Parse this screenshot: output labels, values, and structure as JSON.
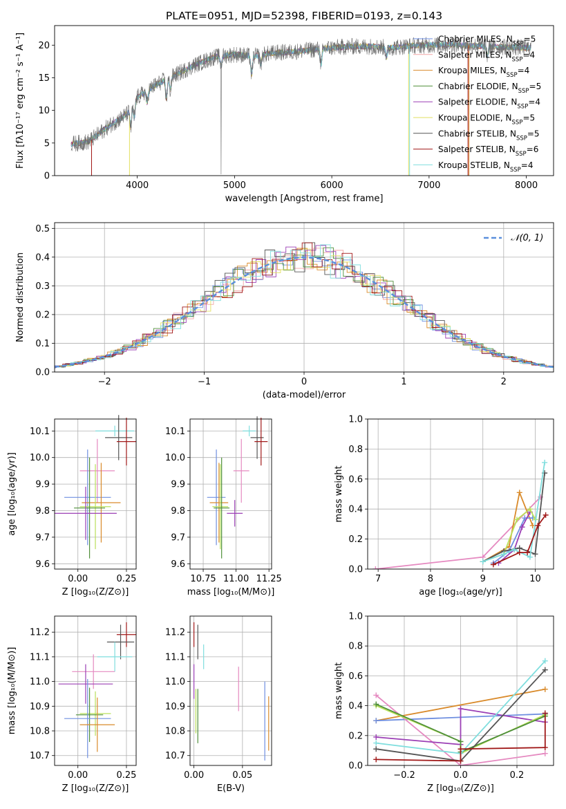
{
  "colors": {
    "chabrier_miles": "#6f8fe0",
    "salpeter_miles": "#f2a6a6",
    "kroupa_miles": "#d98a2a",
    "chabrier_elodie": "#4f8f3a",
    "salpeter_elodie": "#9b3fb5",
    "kroupa_elodie": "#e2df60",
    "chabrier_stelib": "#555555",
    "salpeter_stelib": "#a01818",
    "kroupa_stelib": "#7fdede",
    "normal_curve": "#5a8fdc",
    "pink": "#e589c0",
    "lime": "#b9e05a"
  },
  "chart_data": [
    {
      "id": "spectrum",
      "type": "line",
      "title": "PLATE=0951, MJD=52398, FIBERID=0193, z=0.143",
      "xlabel": "wavelength [Angstrom, rest frame]",
      "ylabel": "Flux [fλ10⁻¹⁷ erg cm⁻² s⁻¹ A⁻¹]",
      "xlim": [
        3150,
        8280
      ],
      "ylim": [
        0,
        23
      ],
      "xticks": [
        "4000",
        "5000",
        "6000",
        "7000",
        "8000"
      ],
      "yticks": [
        "0",
        "5",
        "10",
        "15",
        "20"
      ],
      "legend_position": "top-right",
      "legend": [
        "Chabrier MILES, N_SSP=5",
        "Salpeter MILES, N_SSP=4",
        "Kroupa MILES, N_SSP=4",
        "Chabrier ELODIE, N_SSP=5",
        "Salpeter ELODIE, N_SSP=4",
        "Kroupa ELODIE, N_SSP=5",
        "Chabrier STELIB, N_SSP=5",
        "Salpeter STELIB, N_SSP=6",
        "Kroupa STELIB, N_SSP=4"
      ],
      "continuum": {
        "x": [
          3300,
          3500,
          3700,
          3900,
          4000,
          4200,
          4400,
          4600,
          4800,
          5000,
          5200,
          5400,
          5600,
          5800,
          6000,
          6200,
          6400,
          6600,
          6800,
          7000,
          7200,
          7400,
          7600,
          7800,
          8000
        ],
        "y": [
          4.8,
          5.2,
          7.5,
          9.5,
          12.0,
          14.0,
          15.5,
          17.0,
          18.2,
          18.6,
          18.3,
          18.8,
          19.0,
          19.3,
          19.6,
          19.8,
          19.8,
          19.6,
          19.9,
          20.0,
          20.1,
          20.0,
          19.8,
          19.7,
          19.6
        ]
      }
    },
    {
      "id": "residuals",
      "type": "histogram",
      "xlabel": "(data-model)/error",
      "ylabel": "Normed distribution",
      "xlim": [
        -2.5,
        2.5
      ],
      "ylim": [
        0,
        0.52
      ],
      "xticks": [
        "−2",
        "−1",
        "0",
        "1",
        "2"
      ],
      "yticks": [
        "0.0",
        "0.1",
        "0.2",
        "0.3",
        "0.4",
        "0.5"
      ],
      "legend": "𝒩(0, 1)",
      "legend_position": "top-right",
      "bin_width": 0.1
    },
    {
      "id": "age_vs_Z",
      "type": "errorbar",
      "xlabel": "Z [log₁₀(Z/Z⊙)]",
      "ylabel": "age  [log₁₀(age/yr)]",
      "xlim": [
        -0.12,
        0.3
      ],
      "ylim": [
        9.58,
        10.145
      ],
      "xticks": [
        "0.00",
        "0.25"
      ],
      "yticks": [
        "9.6",
        "9.7",
        "9.8",
        "9.9",
        "10.0",
        "10.1"
      ],
      "points": [
        {
          "x": 0.19,
          "y": 10.1,
          "xerr": 0.1,
          "yerr": 0.02,
          "color": "kroupa_stelib"
        },
        {
          "x": 0.21,
          "y": 10.075,
          "xerr": 0.07,
          "yerr": 0.085,
          "color": "chabrier_stelib"
        },
        {
          "x": 0.25,
          "y": 10.06,
          "xerr": 0.05,
          "yerr": 0.09,
          "color": "salpeter_stelib"
        },
        {
          "x": 0.1,
          "y": 9.95,
          "xerr": 0.09,
          "yerr": 0.12,
          "color": "pink"
        },
        {
          "x": 0.05,
          "y": 9.85,
          "xerr": 0.12,
          "yerr": 0.18,
          "color": "chabrier_miles"
        },
        {
          "x": 0.12,
          "y": 9.83,
          "xerr": 0.1,
          "yerr": 0.15,
          "color": "kroupa_miles"
        },
        {
          "x": 0.09,
          "y": 9.815,
          "xerr": 0.08,
          "yerr": 0.16,
          "color": "lime"
        },
        {
          "x": 0.06,
          "y": 9.81,
          "xerr": 0.08,
          "yerr": 0.19,
          "color": "chabrier_elodie"
        },
        {
          "x": 0.04,
          "y": 9.79,
          "xerr": 0.16,
          "yerr": 0.1,
          "color": "salpeter_elodie"
        }
      ]
    },
    {
      "id": "age_vs_mass",
      "type": "errorbar",
      "xlabel": "mass [log₁₀(M/M⊙)]",
      "ylabel": "",
      "xlim": [
        10.65,
        11.27
      ],
      "ylim": [
        9.58,
        10.145
      ],
      "xticks": [
        "10.75",
        "11.00",
        "11.25"
      ],
      "yticks": [
        "9.6",
        "9.7",
        "9.8",
        "9.9",
        "10.0",
        "10.1"
      ],
      "points": [
        {
          "x": 11.1,
          "y": 10.1,
          "xerr": 0.05,
          "yerr": 0.02,
          "color": "kroupa_stelib"
        },
        {
          "x": 11.16,
          "y": 10.075,
          "xerr": 0.05,
          "yerr": 0.08,
          "color": "chabrier_stelib"
        },
        {
          "x": 11.19,
          "y": 10.06,
          "xerr": 0.05,
          "yerr": 0.09,
          "color": "salpeter_stelib"
        },
        {
          "x": 11.04,
          "y": 9.95,
          "xerr": 0.06,
          "yerr": 0.12,
          "color": "pink"
        },
        {
          "x": 10.85,
          "y": 9.85,
          "xerr": 0.07,
          "yerr": 0.18,
          "color": "chabrier_miles"
        },
        {
          "x": 10.87,
          "y": 9.83,
          "xerr": 0.07,
          "yerr": 0.15,
          "color": "kroupa_miles"
        },
        {
          "x": 10.88,
          "y": 9.815,
          "xerr": 0.06,
          "yerr": 0.16,
          "color": "lime"
        },
        {
          "x": 10.89,
          "y": 9.81,
          "xerr": 0.06,
          "yerr": 0.19,
          "color": "chabrier_elodie"
        },
        {
          "x": 10.99,
          "y": 9.79,
          "xerr": 0.06,
          "yerr": 0.05,
          "color": "salpeter_elodie"
        }
      ]
    },
    {
      "id": "weight_vs_age",
      "type": "line",
      "xlabel": "age  [log₁₀(age/yr)]",
      "ylabel": "mass weight",
      "xlim": [
        6.8,
        10.35
      ],
      "ylim": [
        0,
        1.0
      ],
      "xticks": [
        "7",
        "8",
        "9",
        "10"
      ],
      "yticks": [
        "0.0",
        "0.2",
        "0.4",
        "0.6",
        "0.8",
        "1.0"
      ],
      "series": [
        {
          "color": "pink",
          "x": [
            6.95,
            9.0,
            10.1
          ],
          "y": [
            0.0,
            0.08,
            0.48
          ]
        },
        {
          "color": "kroupa_miles",
          "x": [
            9.0,
            9.5,
            9.7,
            9.95
          ],
          "y": [
            0.05,
            0.15,
            0.51,
            0.29
          ]
        },
        {
          "color": "chabrier_miles",
          "x": [
            9.2,
            9.5,
            9.8,
            9.95
          ],
          "y": [
            0.04,
            0.12,
            0.34,
            0.34
          ]
        },
        {
          "color": "salpeter_elodie",
          "x": [
            9.3,
            9.6,
            9.75,
            9.9
          ],
          "y": [
            0.04,
            0.13,
            0.28,
            0.38
          ]
        },
        {
          "color": "lime",
          "x": [
            9.0,
            9.4,
            9.65,
            9.9,
            10.0
          ],
          "y": [
            0.05,
            0.1,
            0.33,
            0.4,
            0.33
          ]
        },
        {
          "color": "chabrier_stelib",
          "x": [
            9.0,
            9.4,
            9.7,
            10.0,
            10.18
          ],
          "y": [
            0.05,
            0.12,
            0.14,
            0.1,
            0.64
          ]
        },
        {
          "color": "kroupa_stelib",
          "x": [
            9.0,
            9.4,
            9.6,
            9.9,
            10.18
          ],
          "y": [
            0.05,
            0.1,
            0.13,
            0.08,
            0.71
          ]
        },
        {
          "color": "salpeter_stelib",
          "x": [
            9.2,
            9.7,
            9.85,
            10.05,
            10.2
          ],
          "y": [
            0.03,
            0.11,
            0.11,
            0.29,
            0.36
          ]
        }
      ]
    },
    {
      "id": "mass_vs_Z",
      "type": "errorbar",
      "xlabel": "Z [log₁₀(Z/Z⊙)]",
      "ylabel": "mass [log₁₀(M/M⊙)]",
      "xlim": [
        -0.12,
        0.3
      ],
      "ylim": [
        10.66,
        11.265
      ],
      "xticks": [
        "0.00",
        "0.25"
      ],
      "yticks": [
        "10.7",
        "10.8",
        "10.9",
        "11.0",
        "11.1",
        "11.2"
      ],
      "points": [
        {
          "x": 0.25,
          "y": 11.19,
          "xerr": 0.05,
          "yerr": 0.05,
          "color": "salpeter_stelib"
        },
        {
          "x": 0.22,
          "y": 11.16,
          "xerr": 0.07,
          "yerr": 0.07,
          "color": "chabrier_stelib"
        },
        {
          "x": 0.19,
          "y": 11.1,
          "xerr": 0.09,
          "yerr": 0.06,
          "color": "kroupa_stelib"
        },
        {
          "x": 0.08,
          "y": 11.04,
          "xerr": 0.11,
          "yerr": 0.07,
          "color": "pink"
        },
        {
          "x": 0.04,
          "y": 10.99,
          "xerr": 0.14,
          "yerr": 0.08,
          "color": "salpeter_elodie"
        },
        {
          "x": 0.09,
          "y": 10.87,
          "xerr": 0.08,
          "yerr": 0.09,
          "color": "lime"
        },
        {
          "x": 0.06,
          "y": 10.865,
          "xerr": 0.07,
          "yerr": 0.11,
          "color": "chabrier_elodie"
        },
        {
          "x": 0.05,
          "y": 10.85,
          "xerr": 0.12,
          "yerr": 0.16,
          "color": "chabrier_miles"
        },
        {
          "x": 0.1,
          "y": 10.825,
          "xerr": 0.09,
          "yerr": 0.11,
          "color": "kroupa_miles"
        }
      ]
    },
    {
      "id": "mass_vs_ebv",
      "type": "errorbar",
      "xlabel": "E(B-V)",
      "ylabel": "",
      "xlim": [
        -0.004,
        0.08
      ],
      "ylim": [
        10.66,
        11.265
      ],
      "xticks": [
        "0.00",
        "0.05"
      ],
      "yticks": [
        "10.7",
        "10.8",
        "10.9",
        "11.0",
        "11.1",
        "11.2"
      ],
      "points": [
        {
          "x": 0.0,
          "y": 11.19,
          "xerr": 0,
          "yerr": 0.05,
          "color": "salpeter_stelib"
        },
        {
          "x": 0.004,
          "y": 11.16,
          "xerr": 0,
          "yerr": 0.07,
          "color": "chabrier_stelib"
        },
        {
          "x": 0.01,
          "y": 11.1,
          "xerr": 0,
          "yerr": 0.05,
          "color": "kroupa_stelib"
        },
        {
          "x": 0.046,
          "y": 10.97,
          "xerr": 0,
          "yerr": 0.09,
          "color": "pink"
        },
        {
          "x": 0.0,
          "y": 11.0,
          "xerr": 0,
          "yerr": 0.07,
          "color": "salpeter_elodie"
        },
        {
          "x": 0.002,
          "y": 10.88,
          "xerr": 0,
          "yerr": 0.09,
          "color": "lime"
        },
        {
          "x": 0.004,
          "y": 10.86,
          "xerr": 0,
          "yerr": 0.11,
          "color": "chabrier_elodie"
        },
        {
          "x": 0.073,
          "y": 10.84,
          "xerr": 0,
          "yerr": 0.16,
          "color": "chabrier_miles"
        },
        {
          "x": 0.077,
          "y": 10.83,
          "xerr": 0,
          "yerr": 0.11,
          "color": "kroupa_miles"
        }
      ]
    },
    {
      "id": "weight_vs_Z",
      "type": "line",
      "xlabel": "Z [log₁₀(Z/Z⊙)]",
      "ylabel": "mass weight",
      "xlim": [
        -0.33,
        0.33
      ],
      "ylim": [
        0,
        1.0
      ],
      "xticks": [
        "−0.2",
        "0.0",
        "0.2"
      ],
      "yticks": [
        "0.0",
        "0.2",
        "0.4",
        "0.6",
        "0.8",
        "1.0"
      ],
      "series": [
        {
          "color": "kroupa_miles",
          "x": [
            -0.3,
            0.3
          ],
          "y": [
            0.3,
            0.51
          ]
        },
        {
          "color": "chabrier_miles",
          "x": [
            -0.3,
            0.3
          ],
          "y": [
            0.3,
            0.345
          ]
        },
        {
          "color": "pink",
          "x": [
            -0.3,
            0.0,
            0.3
          ],
          "y": [
            0.47,
            0.0,
            0.08
          ]
        },
        {
          "color": "salpeter_elodie",
          "x": [
            -0.3,
            0.0,
            0.0,
            0.3
          ],
          "y": [
            0.19,
            0.14,
            0.38,
            0.29
          ]
        },
        {
          "color": "lime",
          "x": [
            -0.3,
            0.0,
            0.0,
            0.3
          ],
          "y": [
            0.4,
            0.16,
            0.08,
            0.34
          ]
        },
        {
          "color": "chabrier_elodie",
          "x": [
            -0.3,
            0.0,
            0.0,
            0.3
          ],
          "y": [
            0.41,
            0.16,
            0.09,
            0.33
          ]
        },
        {
          "color": "kroupa_stelib",
          "x": [
            -0.3,
            0.0,
            0.3
          ],
          "y": [
            0.15,
            0.08,
            0.7
          ]
        },
        {
          "color": "chabrier_stelib",
          "x": [
            -0.3,
            0.0,
            0.3
          ],
          "y": [
            0.11,
            0.03,
            0.64
          ]
        },
        {
          "color": "salpeter_stelib",
          "x": [
            -0.3,
            0.0,
            0.0,
            0.3,
            0.3
          ],
          "y": [
            0.04,
            0.03,
            0.11,
            0.12,
            0.35
          ]
        }
      ]
    }
  ]
}
